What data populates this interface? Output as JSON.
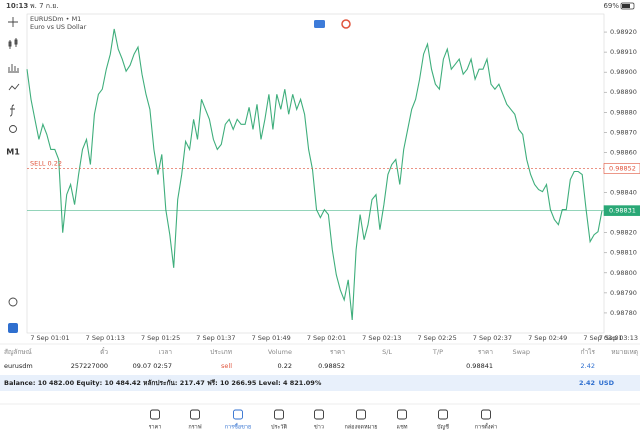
{
  "status_bar": {
    "time": "10:13",
    "date": "พ. 7 ก.ย.",
    "battery": "69%"
  },
  "toolbar": {
    "timeframe": "M1"
  },
  "chart_data": {
    "type": "line",
    "symbol": "EURUSDm • M1",
    "description": "Euro vs US Dollar",
    "color": "#3fae7c",
    "values": [
      0.989015,
      0.988865,
      0.988765,
      0.988665,
      0.98874,
      0.98869,
      0.988615,
      0.988615,
      0.988565,
      0.9882,
      0.98839,
      0.98844,
      0.98834,
      0.98849,
      0.988615,
      0.988665,
      0.98854,
      0.98879,
      0.98889,
      0.988915,
      0.989015,
      0.98909,
      0.989215,
      0.989115,
      0.989065,
      0.989005,
      0.989035,
      0.98909,
      0.989125,
      0.98899,
      0.98889,
      0.988815,
      0.988615,
      0.98849,
      0.98859,
      0.988315,
      0.98819,
      0.988025,
      0.988365,
      0.98849,
      0.988655,
      0.988615,
      0.988765,
      0.988665,
      0.988865,
      0.988815,
      0.988765,
      0.988665,
      0.988615,
      0.98864,
      0.98874,
      0.988765,
      0.988715,
      0.988765,
      0.98874,
      0.98874,
      0.988825,
      0.988715,
      0.98884,
      0.988665,
      0.988765,
      0.98889,
      0.988715,
      0.98889,
      0.988815,
      0.988915,
      0.98879,
      0.98889,
      0.988815,
      0.988865,
      0.98879,
      0.988615,
      0.988515,
      0.988315,
      0.988275,
      0.988315,
      0.98829,
      0.988115,
      0.98799,
      0.987915,
      0.987865,
      0.987965,
      0.987765,
      0.988115,
      0.98829,
      0.988165,
      0.98824,
      0.988365,
      0.98839,
      0.988215,
      0.98834,
      0.98849,
      0.98854,
      0.988565,
      0.98844,
      0.988615,
      0.988715,
      0.988815,
      0.988865,
      0.988965,
      0.98909,
      0.98914,
      0.989015,
      0.98894,
      0.988915,
      0.989065,
      0.989115,
      0.989015,
      0.98904,
      0.989065,
      0.98899,
      0.989015,
      0.989065,
      0.988965,
      0.989015,
      0.989015,
      0.989065,
      0.98894,
      0.988915,
      0.98894,
      0.98889,
      0.98884,
      0.988815,
      0.98879,
      0.988715,
      0.98869,
      0.988565,
      0.98849,
      0.98844,
      0.988415,
      0.988405,
      0.98844,
      0.988315,
      0.988265,
      0.98824,
      0.988315,
      0.988315,
      0.988465,
      0.988505,
      0.988505,
      0.98849,
      0.988315,
      0.988155,
      0.98819,
      0.988205,
      0.98831
    ],
    "ylim": [
      0.9877,
      0.98929
    ],
    "yticks": [
      {
        "value": 0.9892,
        "label": "0.98920"
      },
      {
        "value": 0.9891,
        "label": "0.98910"
      },
      {
        "value": 0.989,
        "label": "0.98900"
      },
      {
        "value": 0.9889,
        "label": "0.98890"
      },
      {
        "value": 0.9888,
        "label": "0.98880"
      },
      {
        "value": 0.9887,
        "label": "0.98870"
      },
      {
        "value": 0.9886,
        "label": "0.98860"
      },
      {
        "value": 0.9884,
        "label": "0.98840"
      },
      {
        "value": 0.9882,
        "label": "0.98820"
      },
      {
        "value": 0.9881,
        "label": "0.98810"
      },
      {
        "value": 0.988,
        "label": "0.98800"
      },
      {
        "value": 0.9879,
        "label": "0.98790"
      },
      {
        "value": 0.9878,
        "label": "0.98780"
      }
    ],
    "x_labels": [
      "7 Sep 01:01",
      "7 Sep 01:13",
      "7 Sep 01:25",
      "7 Sep 01:37",
      "7 Sep 01:49",
      "7 Sep 02:01",
      "7 Sep 02:13",
      "7 Sep 02:25",
      "7 Sep 02:37",
      "7 Sep 02:49",
      "7 Sep 03:01",
      "7 Sep 03:13"
    ],
    "price_lines": [
      {
        "label": "SELL 0.22",
        "value": 0.98852,
        "color": "#e0533b"
      },
      {
        "value": 0.98831,
        "color": "#2aa876"
      }
    ]
  },
  "table": {
    "header": [
      "สัญลักษณ์",
      "ตั๋ว",
      "เวลา",
      "ประเภท",
      "Volume",
      "ราคา",
      "S/L",
      "T/P",
      "ราคา",
      "Swap",
      "กำไร",
      "หมายเหตุ"
    ],
    "rows": [
      [
        "eurusdm",
        "257227000",
        "09.07 02:57",
        "sell",
        "0.22",
        "0.98852",
        "",
        "",
        "0.98841",
        "",
        "2.42",
        ""
      ]
    ]
  },
  "balance": {
    "text": "Balance: 10 482.00 Equity: 10 484.42 หลักประกัน: 217.47 ฟรี: 10 266.95 Level: 4 821.09%",
    "profit": "2.42",
    "currency": "USD"
  },
  "tabs": [
    "ราคา",
    "กราฟ",
    "การซื้อขาย",
    "ประวัติ",
    "ข่าว",
    "กล่องจดหมาย",
    "แชท",
    "บัญชี",
    "การตั้งค่า"
  ]
}
